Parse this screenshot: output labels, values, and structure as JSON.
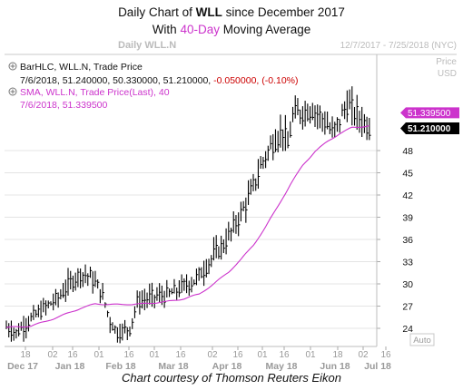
{
  "header": {
    "title_prefix": "Daily Chart of ",
    "title_ticker": "WLL",
    "title_suffix": " since December 2017",
    "subtitle_prefix": "With ",
    "subtitle_highlight": "40-Day",
    "subtitle_suffix": " Moving Average",
    "highlight_color": "#cc33cc"
  },
  "chart_header": {
    "instrument": "Daily WLL.N",
    "date_range": "12/7/2017 - 7/25/2018 (NYC)",
    "price_label": "Price",
    "currency_label": "USD"
  },
  "legend": {
    "bar_series_label": "BarHLC, WLL.N, Trade Price",
    "bar_values_prefix": "7/6/2018, 51.240000, 50.330000, 51.210000, ",
    "bar_values_change": "-0.050000, (-0.10%)",
    "sma_series_label": "SMA, WLL.N, Trade Price(Last),  40",
    "sma_values": "7/6/2018, 51.339500",
    "change_color": "#cc0000",
    "sma_color": "#cc33cc"
  },
  "badges": {
    "sma_value": "51.339500",
    "last_price": "51.210000",
    "scale_mode": "Auto"
  },
  "chart_data": {
    "type": "bar",
    "title": "Daily Chart of WLL since December 2017",
    "subtitle": "With 40-Day Moving Average",
    "y_ticks": [
      24,
      27,
      30,
      33,
      36,
      39,
      42,
      45,
      48
    ],
    "ylim": [
      21.5,
      58
    ],
    "x_day_ticks": [
      "18",
      "02",
      "16",
      "01",
      "16",
      "01",
      "16",
      "02",
      "16",
      "01",
      "16",
      "01",
      "18",
      "02",
      "16"
    ],
    "x_month_labels": [
      "Dec 17",
      "Jan 18",
      "Feb 18",
      "Mar 18",
      "Apr 18",
      "May 18",
      "Jun 18",
      "Jul 18"
    ],
    "series": [
      {
        "name": "BarHLC, WLL.N, Trade Price",
        "color": "#000000",
        "anchors": [
          [
            0,
            24.2
          ],
          [
            4,
            23.4
          ],
          [
            10,
            25.3
          ],
          [
            16,
            26.9
          ],
          [
            21,
            28.1
          ],
          [
            26,
            30.2
          ],
          [
            30,
            31.4
          ],
          [
            34,
            31.0
          ],
          [
            38,
            29.1
          ],
          [
            40,
            27.3
          ],
          [
            42,
            25.0
          ],
          [
            45,
            23.4
          ],
          [
            48,
            23.8
          ],
          [
            50,
            24.0
          ],
          [
            53,
            27.5
          ],
          [
            57,
            28.0
          ],
          [
            61,
            28.4
          ],
          [
            64,
            28.4
          ],
          [
            68,
            28.9
          ],
          [
            72,
            29.7
          ],
          [
            76,
            30.4
          ],
          [
            80,
            31.9
          ],
          [
            84,
            33.9
          ],
          [
            88,
            35.3
          ],
          [
            92,
            37.6
          ],
          [
            96,
            40.1
          ],
          [
            100,
            43.1
          ],
          [
            104,
            46.7
          ],
          [
            108,
            49.1
          ],
          [
            112,
            50.7
          ],
          [
            114,
            48.5
          ],
          [
            116,
            52.6
          ],
          [
            120,
            53.3
          ],
          [
            124,
            53.6
          ],
          [
            128,
            52.4
          ],
          [
            132,
            50.3
          ],
          [
            135,
            52.1
          ],
          [
            138,
            54.3
          ],
          [
            141,
            53.1
          ],
          [
            144,
            52.1
          ],
          [
            147,
            51.2
          ]
        ]
      },
      {
        "name": "SMA, WLL.N, Trade Price(Last),  40",
        "color": "#cc33cc",
        "anchors": [
          [
            0,
            24.1
          ],
          [
            10,
            24.3
          ],
          [
            20,
            25.4
          ],
          [
            30,
            26.7
          ],
          [
            36,
            27.3
          ],
          [
            45,
            27.2
          ],
          [
            55,
            27.3
          ],
          [
            65,
            27.6
          ],
          [
            72,
            28.0
          ],
          [
            78,
            28.6
          ],
          [
            84,
            30.0
          ],
          [
            90,
            31.6
          ],
          [
            95,
            33.3
          ],
          [
            100,
            35.2
          ],
          [
            105,
            37.7
          ],
          [
            110,
            40.5
          ],
          [
            115,
            43.4
          ],
          [
            120,
            46.0
          ],
          [
            125,
            47.9
          ],
          [
            130,
            49.2
          ],
          [
            135,
            50.3
          ],
          [
            140,
            51.1
          ],
          [
            147,
            51.34
          ]
        ]
      }
    ]
  },
  "footer": {
    "caption": "Chart courtesy of Thomson Reuters Eikon"
  }
}
